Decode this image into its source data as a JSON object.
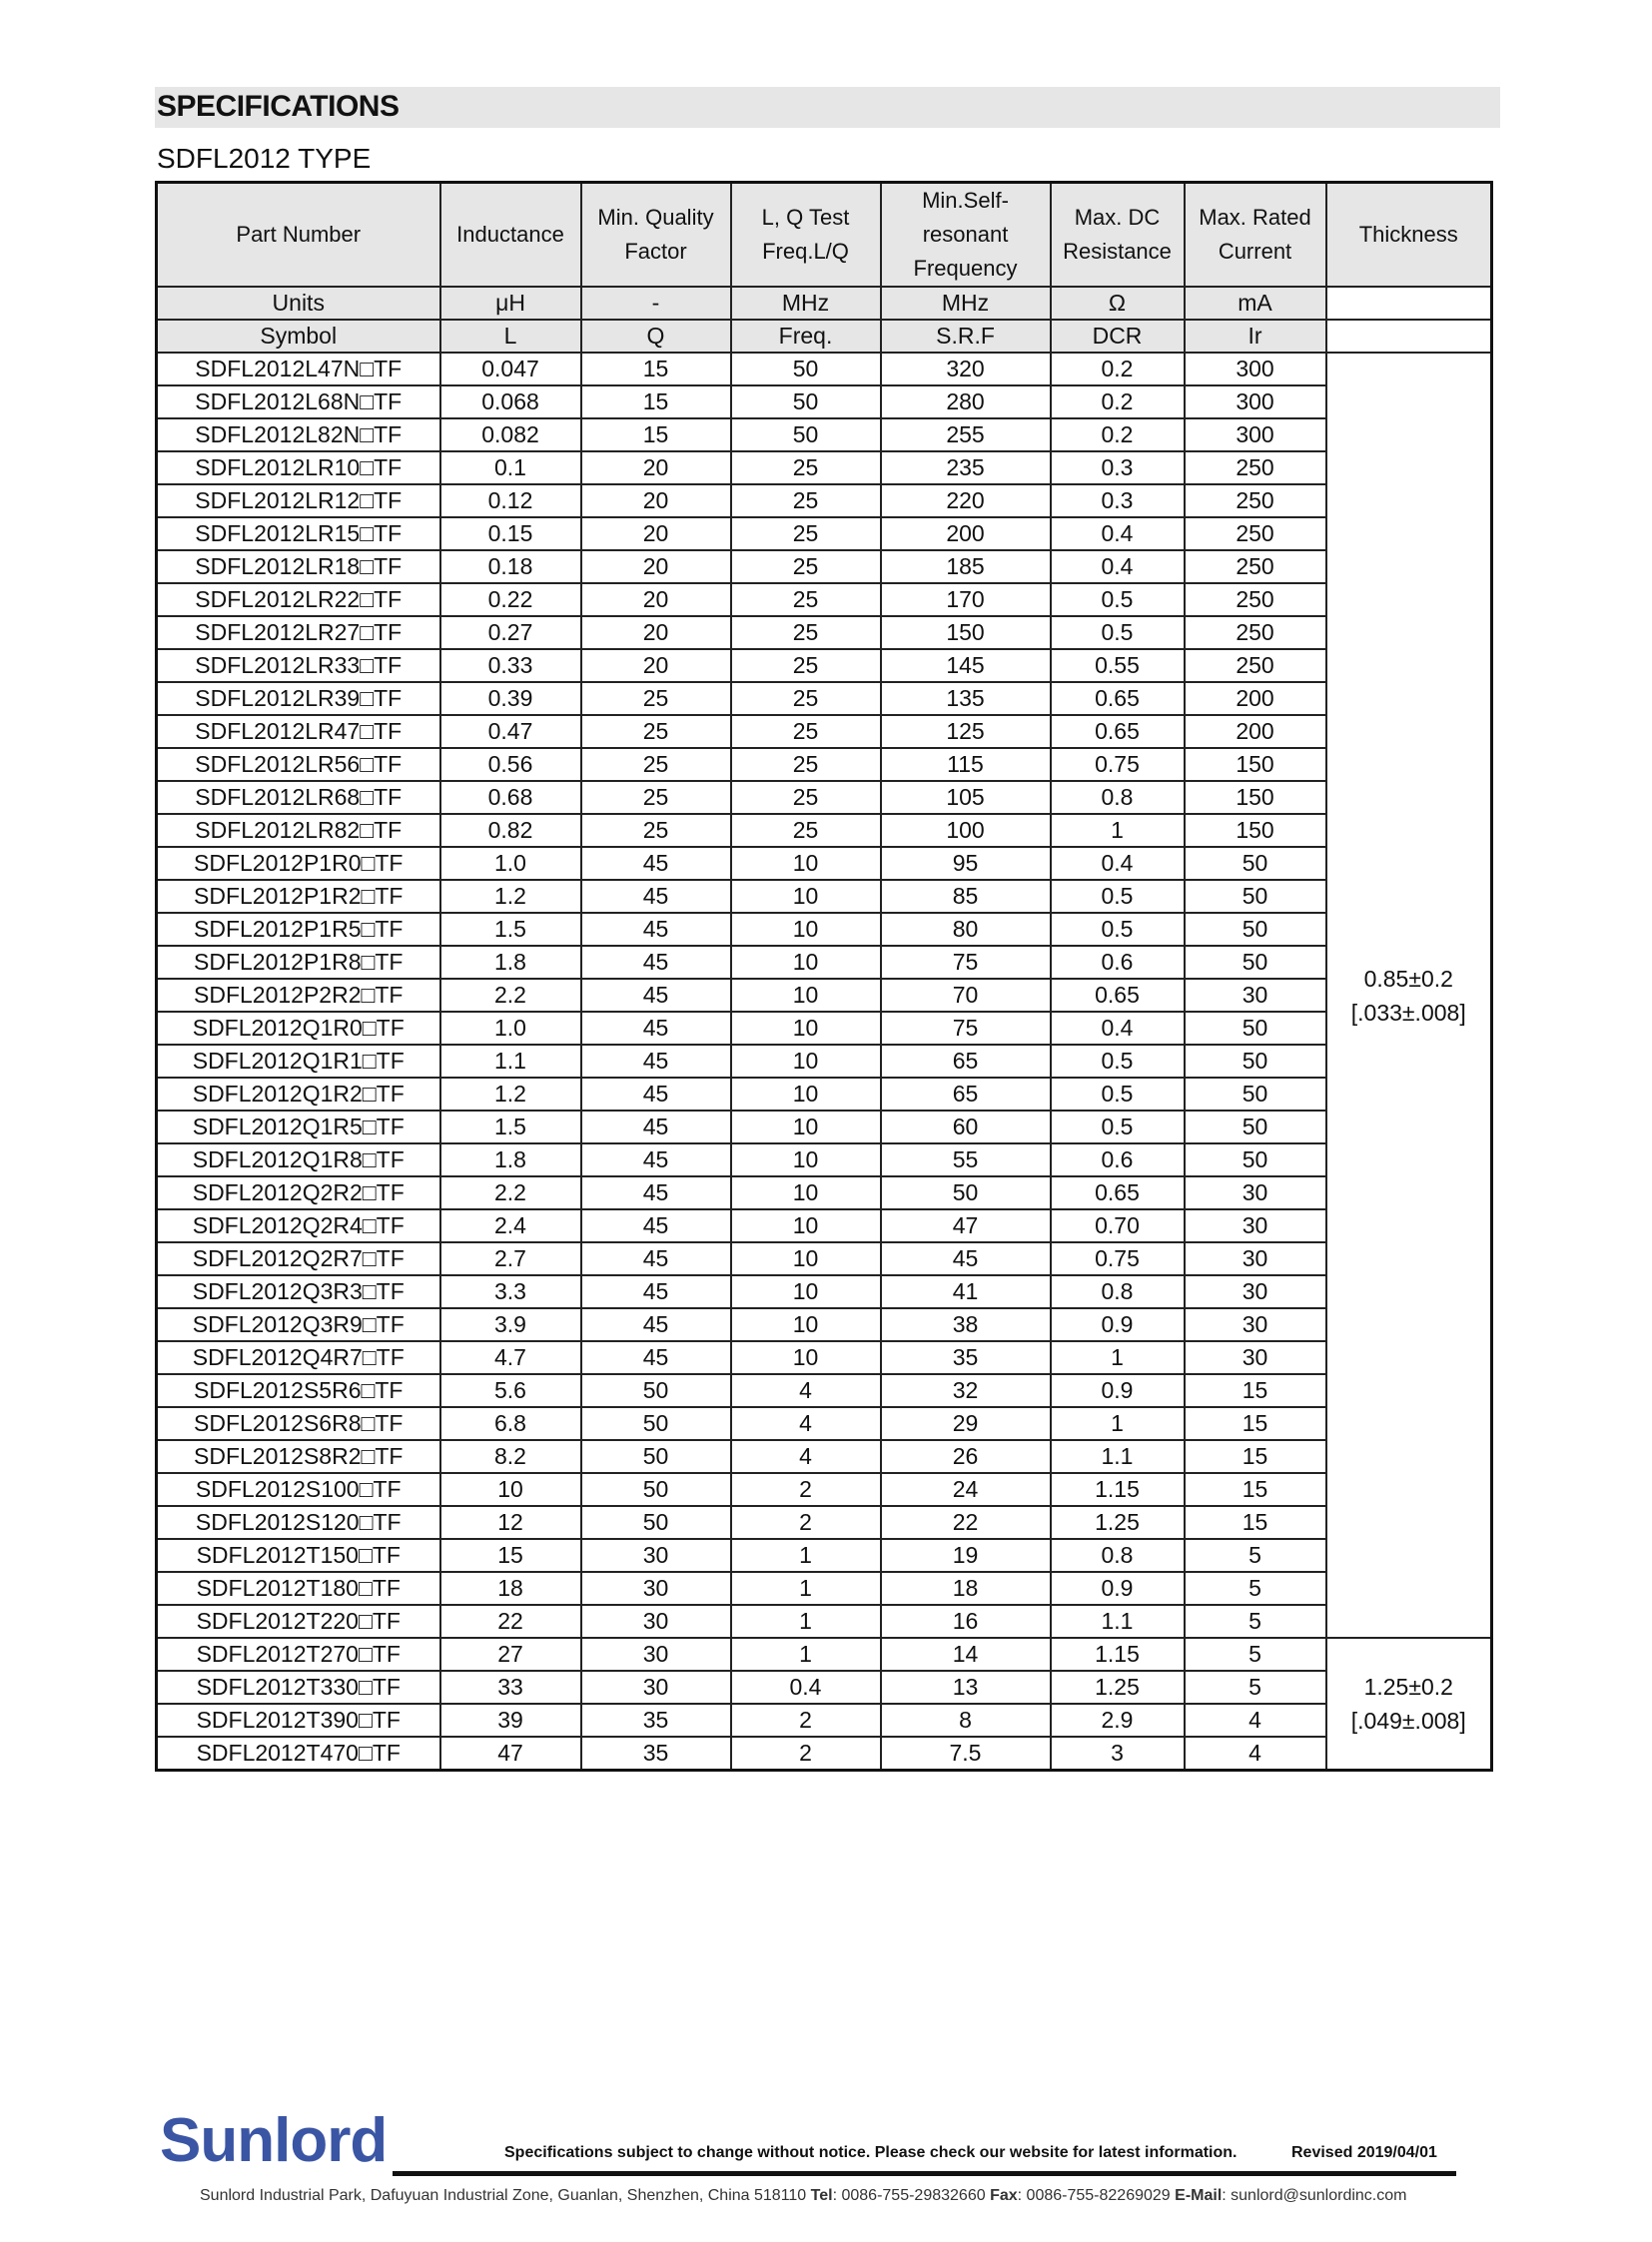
{
  "title": "SPECIFICATIONS",
  "subtitle": "SDFL2012 TYPE",
  "headers": [
    "Part Number",
    "Inductance",
    "Min. Quality Factor",
    "L, Q Test Freq.L/Q",
    "Min.Self-resonant Frequency",
    "Max. DC Resistance",
    "Max. Rated Current",
    "Thickness"
  ],
  "units": [
    "Units",
    "μH",
    "-",
    "MHz",
    "MHz",
    "Ω",
    "mA"
  ],
  "symbols": [
    "Symbol",
    "L",
    "Q",
    "Freq.",
    "S.R.F",
    "DCR",
    "Ir"
  ],
  "rows": [
    [
      "SDFL2012L47N□TF",
      "0.047",
      "15",
      "50",
      "320",
      "0.2",
      "300"
    ],
    [
      "SDFL2012L68N□TF",
      "0.068",
      "15",
      "50",
      "280",
      "0.2",
      "300"
    ],
    [
      "SDFL2012L82N□TF",
      "0.082",
      "15",
      "50",
      "255",
      "0.2",
      "300"
    ],
    [
      "SDFL2012LR10□TF",
      "0.1",
      "20",
      "25",
      "235",
      "0.3",
      "250"
    ],
    [
      "SDFL2012LR12□TF",
      "0.12",
      "20",
      "25",
      "220",
      "0.3",
      "250"
    ],
    [
      "SDFL2012LR15□TF",
      "0.15",
      "20",
      "25",
      "200",
      "0.4",
      "250"
    ],
    [
      "SDFL2012LR18□TF",
      "0.18",
      "20",
      "25",
      "185",
      "0.4",
      "250"
    ],
    [
      "SDFL2012LR22□TF",
      "0.22",
      "20",
      "25",
      "170",
      "0.5",
      "250"
    ],
    [
      "SDFL2012LR27□TF",
      "0.27",
      "20",
      "25",
      "150",
      "0.5",
      "250"
    ],
    [
      "SDFL2012LR33□TF",
      "0.33",
      "20",
      "25",
      "145",
      "0.55",
      "250"
    ],
    [
      "SDFL2012LR39□TF",
      "0.39",
      "25",
      "25",
      "135",
      "0.65",
      "200"
    ],
    [
      "SDFL2012LR47□TF",
      "0.47",
      "25",
      "25",
      "125",
      "0.65",
      "200"
    ],
    [
      "SDFL2012LR56□TF",
      "0.56",
      "25",
      "25",
      "115",
      "0.75",
      "150"
    ],
    [
      "SDFL2012LR68□TF",
      "0.68",
      "25",
      "25",
      "105",
      "0.8",
      "150"
    ],
    [
      "SDFL2012LR82□TF",
      "0.82",
      "25",
      "25",
      "100",
      "1",
      "150"
    ],
    [
      "SDFL2012P1R0□TF",
      "1.0",
      "45",
      "10",
      "95",
      "0.4",
      "50"
    ],
    [
      "SDFL2012P1R2□TF",
      "1.2",
      "45",
      "10",
      "85",
      "0.5",
      "50"
    ],
    [
      "SDFL2012P1R5□TF",
      "1.5",
      "45",
      "10",
      "80",
      "0.5",
      "50"
    ],
    [
      "SDFL2012P1R8□TF",
      "1.8",
      "45",
      "10",
      "75",
      "0.6",
      "50"
    ],
    [
      "SDFL2012P2R2□TF",
      "2.2",
      "45",
      "10",
      "70",
      "0.65",
      "30"
    ],
    [
      "SDFL2012Q1R0□TF",
      "1.0",
      "45",
      "10",
      "75",
      "0.4",
      "50"
    ],
    [
      "SDFL2012Q1R1□TF",
      "1.1",
      "45",
      "10",
      "65",
      "0.5",
      "50"
    ],
    [
      "SDFL2012Q1R2□TF",
      "1.2",
      "45",
      "10",
      "65",
      "0.5",
      "50"
    ],
    [
      "SDFL2012Q1R5□TF",
      "1.5",
      "45",
      "10",
      "60",
      "0.5",
      "50"
    ],
    [
      "SDFL2012Q1R8□TF",
      "1.8",
      "45",
      "10",
      "55",
      "0.6",
      "50"
    ],
    [
      "SDFL2012Q2R2□TF",
      "2.2",
      "45",
      "10",
      "50",
      "0.65",
      "30"
    ],
    [
      "SDFL2012Q2R4□TF",
      "2.4",
      "45",
      "10",
      "47",
      "0.70",
      "30"
    ],
    [
      "SDFL2012Q2R7□TF",
      "2.7",
      "45",
      "10",
      "45",
      "0.75",
      "30"
    ],
    [
      "SDFL2012Q3R3□TF",
      "3.3",
      "45",
      "10",
      "41",
      "0.8",
      "30"
    ],
    [
      "SDFL2012Q3R9□TF",
      "3.9",
      "45",
      "10",
      "38",
      "0.9",
      "30"
    ],
    [
      "SDFL2012Q4R7□TF",
      "4.7",
      "45",
      "10",
      "35",
      "1",
      "30"
    ],
    [
      "SDFL2012S5R6□TF",
      "5.6",
      "50",
      "4",
      "32",
      "0.9",
      "15"
    ],
    [
      "SDFL2012S6R8□TF",
      "6.8",
      "50",
      "4",
      "29",
      "1",
      "15"
    ],
    [
      "SDFL2012S8R2□TF",
      "8.2",
      "50",
      "4",
      "26",
      "1.1",
      "15"
    ],
    [
      "SDFL2012S100□TF",
      "10",
      "50",
      "2",
      "24",
      "1.15",
      "15"
    ],
    [
      "SDFL2012S120□TF",
      "12",
      "50",
      "2",
      "22",
      "1.25",
      "15"
    ],
    [
      "SDFL2012T150□TF",
      "15",
      "30",
      "1",
      "19",
      "0.8",
      "5"
    ],
    [
      "SDFL2012T180□TF",
      "18",
      "30",
      "1",
      "18",
      "0.9",
      "5"
    ],
    [
      "SDFL2012T220□TF",
      "22",
      "30",
      "1",
      "16",
      "1.1",
      "5"
    ],
    [
      "SDFL2012T270□TF",
      "27",
      "30",
      "1",
      "14",
      "1.15",
      "5"
    ],
    [
      "SDFL2012T330□TF",
      "33",
      "30",
      "0.4",
      "13",
      "1.25",
      "5"
    ],
    [
      "SDFL2012T390□TF",
      "39",
      "35",
      "2",
      "8",
      "2.9",
      "4"
    ],
    [
      "SDFL2012T470□TF",
      "47",
      "35",
      "2",
      "7.5",
      "3",
      "4"
    ]
  ],
  "thickness_groups": [
    {
      "rows": 39,
      "line1": "0.85±0.2",
      "line2": "[.033±.008]"
    },
    {
      "rows": 4,
      "line1": "1.25±0.2",
      "line2": "[.049±.008]"
    }
  ],
  "footer": {
    "logo": "Sunlord",
    "logo_color": "#3a55a4",
    "notice": "Specifications subject to change without notice. Please check our website for latest information.",
    "revised": "Revised 2019/04/01",
    "address": "Sunlord Industrial Park, Dafuyuan Industrial Zone, Guanlan, Shenzhen, China 518110",
    "tel_label": "Tel",
    "tel": ": 0086-755-29832660",
    "fax_label": "Fax",
    "fax": ": 0086-755-82269029",
    "email_label": "E-Mail",
    "email": ": sunlord@sunlordinc.com"
  }
}
